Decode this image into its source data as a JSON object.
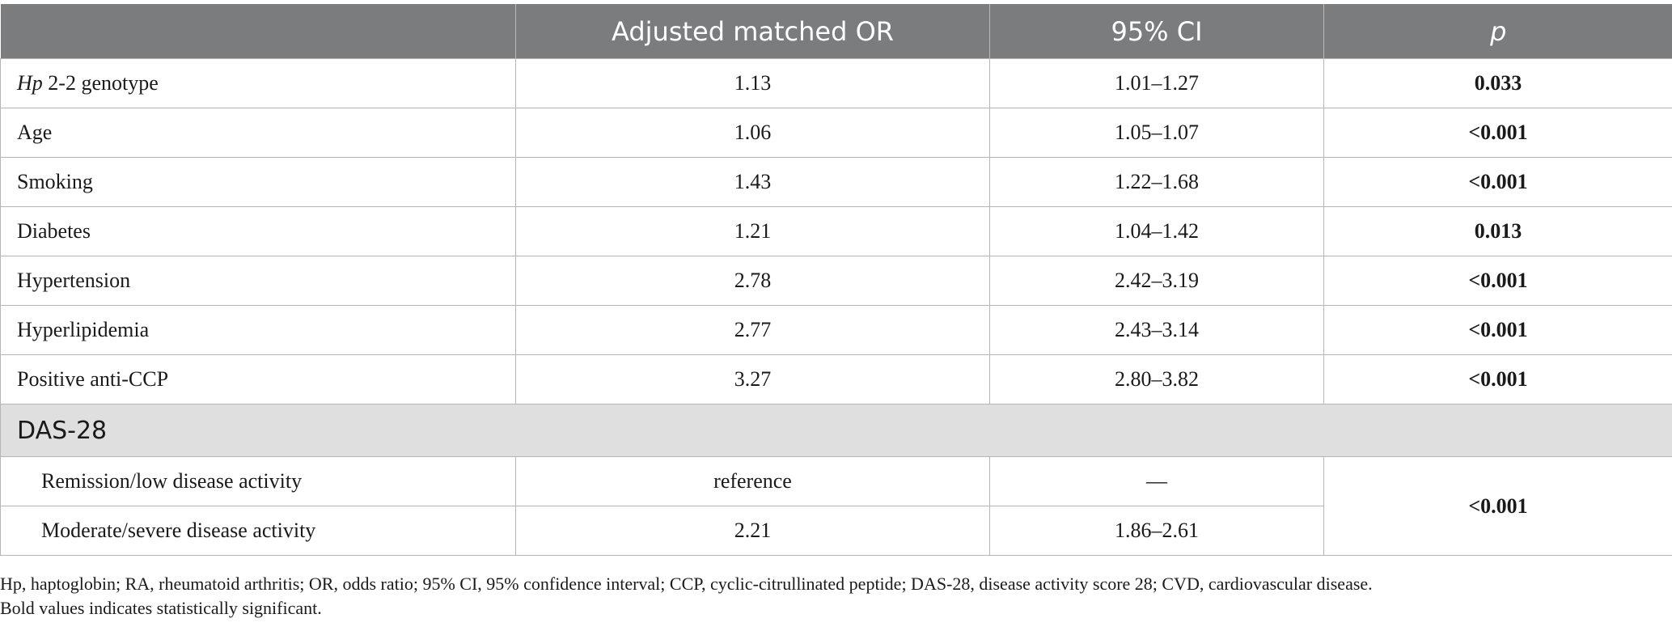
{
  "table": {
    "headers": [
      "",
      "Adjusted matched OR",
      "95% CI",
      "p"
    ],
    "rows": [
      {
        "variable_italic": "Hp",
        "variable_rest": " 2-2 genotype",
        "or": "1.13",
        "ci": "1.01–1.27",
        "p": "0.033"
      },
      {
        "variable": "Age",
        "or": "1.06",
        "ci": "1.05–1.07",
        "p": "<0.001"
      },
      {
        "variable": "Smoking",
        "or": "1.43",
        "ci": "1.22–1.68",
        "p": "<0.001"
      },
      {
        "variable": "Diabetes",
        "or": "1.21",
        "ci": "1.04–1.42",
        "p": "0.013"
      },
      {
        "variable": "Hypertension",
        "or": "2.78",
        "ci": "2.42–3.19",
        "p": "<0.001"
      },
      {
        "variable": "Hyperlipidemia",
        "or": "2.77",
        "ci": "2.43–3.14",
        "p": "<0.001"
      },
      {
        "variable": "Positive anti-CCP",
        "or": "3.27",
        "ci": "2.80–3.82",
        "p": "<0.001"
      }
    ],
    "section": {
      "label": "DAS-28",
      "rows": [
        {
          "variable": "Remission/low disease activity",
          "or": "reference",
          "ci": "—"
        },
        {
          "variable": "Moderate/severe disease activity",
          "or": "2.21",
          "ci": "1.86–2.61"
        }
      ],
      "p": "<0.001"
    }
  },
  "footnote": {
    "line1": "Hp, haptoglobin; RA, rheumatoid arthritis; OR, odds ratio; 95% CI, 95% confidence interval; CCP, cyclic-citrullinated peptide; DAS-28, disease activity score 28; CVD, cardiovascular disease.",
    "line2": "Bold values indicates statistically significant."
  }
}
